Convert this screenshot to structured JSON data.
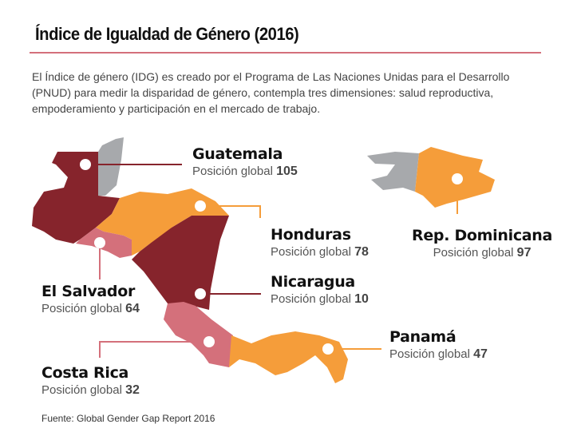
{
  "title": "Índice de Igualdad de Género (2016)",
  "intro": "El Índice de género (IDG) es creado por el Programa de Las Naciones Unidas para el Desarrollo (PNUD) para medir la disparidad de género, contempla tres dimensiones: salud reproductiva, empoderamiento y participación en el mercado de trabajo.",
  "position_label": "Posición global",
  "colors": {
    "maroon": "#86242c",
    "orange": "#f59d3a",
    "pink": "#d4707b",
    "gray": "#a7a9ac",
    "rule": "#d4707b"
  },
  "countries": [
    {
      "name": "Guatemala",
      "rank": "105"
    },
    {
      "name": "Honduras",
      "rank": "78"
    },
    {
      "name": "El Salvador",
      "rank": "64"
    },
    {
      "name": "Nicaragua",
      "rank": "10"
    },
    {
      "name": "Costa Rica",
      "rank": "32"
    },
    {
      "name": "Panamá",
      "rank": "47"
    },
    {
      "name": "Rep. Dominicana",
      "rank": "97"
    }
  ],
  "source": "Fuente: Global Gender Gap Report 2016"
}
